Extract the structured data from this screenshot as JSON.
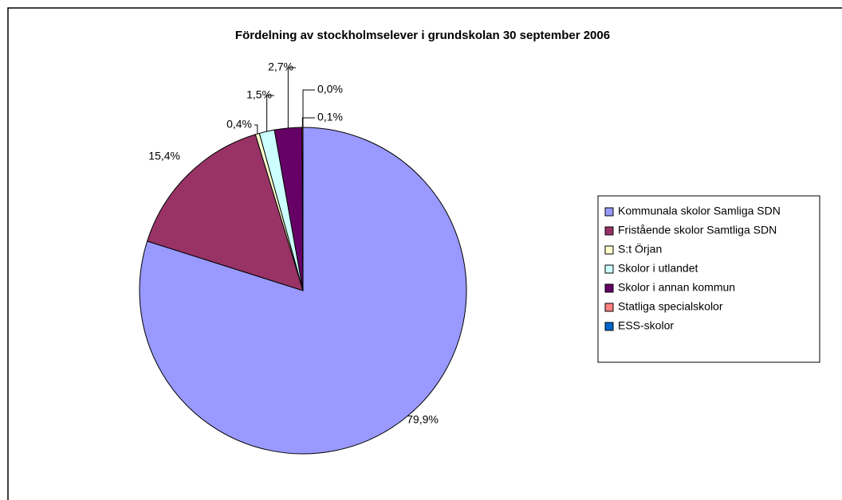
{
  "chart_data": {
    "type": "pie",
    "title": "Fördelning av stockholmselever i grundskolan 30 september 2006",
    "categories": [
      "Kommunala skolor Samliga SDN",
      "Fristående skolor Samtliga SDN",
      "S:t Örjan",
      "Skolor i utlandet",
      "Skolor i annan kommun",
      "Statliga specialskolor",
      "ESS-skolor"
    ],
    "values": [
      79.9,
      15.4,
      0.4,
      1.5,
      2.7,
      0.1,
      0.0
    ],
    "value_labels": [
      "79,9%",
      "15,4%",
      "0,4%",
      "1,5%",
      "2,7%",
      "0,1%",
      "0,0%"
    ],
    "colors": [
      "#9999ff",
      "#993366",
      "#ffffcc",
      "#ccffff",
      "#660066",
      "#ff8080",
      "#0066cc"
    ],
    "legend": "right"
  }
}
